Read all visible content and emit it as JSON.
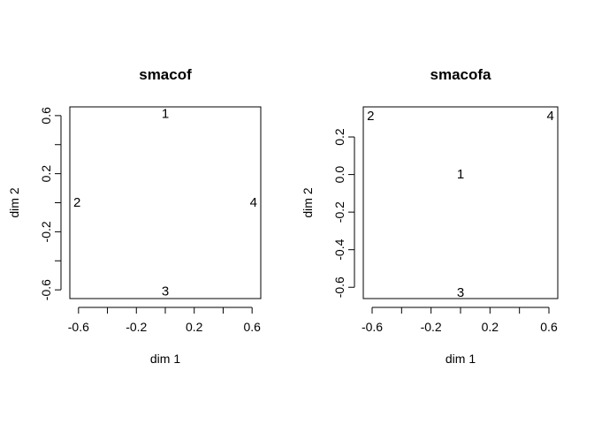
{
  "chart_data": [
    {
      "type": "scatter",
      "title": "smacof",
      "xlabel": "dim 1",
      "ylabel": "dim 2",
      "xlim": [
        -0.66,
        0.66
      ],
      "ylim": [
        -0.66,
        0.66
      ],
      "xticks": [
        -0.6,
        -0.4,
        -0.2,
        0.0,
        0.2,
        0.4,
        0.6
      ],
      "xtick_labels": [
        "-0.6",
        "",
        "-0.2",
        "",
        "0.2",
        "",
        "0.6"
      ],
      "yticks": [
        -0.6,
        -0.4,
        -0.2,
        0.0,
        0.2,
        0.4,
        0.6
      ],
      "ytick_labels": [
        "-0.6",
        "",
        "-0.2",
        "",
        "0.2",
        "",
        "0.6"
      ],
      "grid": false,
      "points": [
        {
          "label": "1",
          "x": 0.0,
          "y": 0.61
        },
        {
          "label": "2",
          "x": -0.61,
          "y": 0.0
        },
        {
          "label": "3",
          "x": 0.0,
          "y": -0.61
        },
        {
          "label": "4",
          "x": 0.61,
          "y": 0.0
        }
      ]
    },
    {
      "type": "scatter",
      "title": "smacofa",
      "xlabel": "dim 1",
      "ylabel": "dim 2",
      "xlim": [
        -0.66,
        0.66
      ],
      "ylim": [
        -0.66,
        0.36
      ],
      "xticks": [
        -0.6,
        -0.4,
        -0.2,
        0.0,
        0.2,
        0.4,
        0.6
      ],
      "xtick_labels": [
        "-0.6",
        "",
        "-0.2",
        "",
        "0.2",
        "",
        "0.6"
      ],
      "yticks": [
        -0.6,
        -0.4,
        -0.2,
        0.0,
        0.2
      ],
      "ytick_labels": [
        "-0.6",
        "-0.4",
        "-0.2",
        "0.0",
        "0.2"
      ],
      "grid": false,
      "points": [
        {
          "label": "1",
          "x": 0.0,
          "y": 0.0
        },
        {
          "label": "2",
          "x": -0.61,
          "y": 0.31
        },
        {
          "label": "3",
          "x": 0.0,
          "y": -0.63
        },
        {
          "label": "4",
          "x": 0.61,
          "y": 0.31
        }
      ]
    }
  ]
}
